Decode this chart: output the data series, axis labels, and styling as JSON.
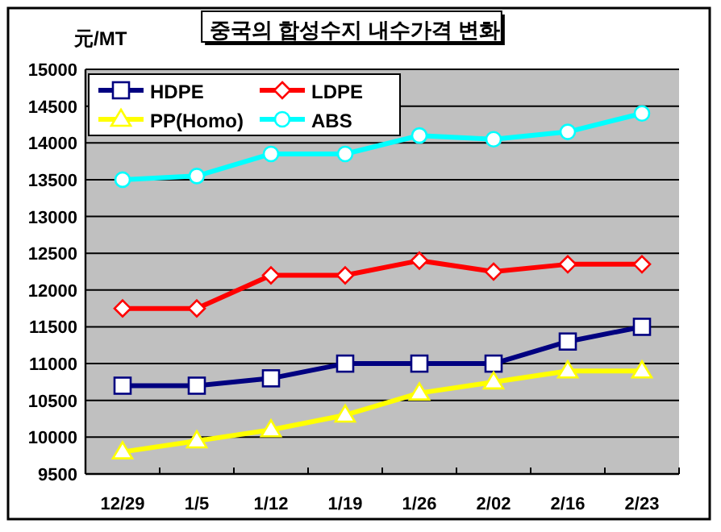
{
  "chart_data": {
    "type": "line",
    "title": "중국의 합성수지 내수가격 변화",
    "ylabel": "元/MT",
    "categories": [
      "12/29",
      "1/5",
      "1/12",
      "1/19",
      "1/26",
      "2/02",
      "2/16",
      "2/23"
    ],
    "series": [
      {
        "name": "HDPE",
        "color": "#000080",
        "marker": "square",
        "values": [
          10700,
          10700,
          10800,
          11000,
          11000,
          11000,
          11300,
          11500
        ]
      },
      {
        "name": "LDPE",
        "color": "#ff0000",
        "marker": "diamond",
        "values": [
          11750,
          11750,
          12200,
          12200,
          12400,
          12250,
          12350,
          12350
        ]
      },
      {
        "name": "PP(Homo)",
        "color": "#ffff00",
        "marker": "triangle",
        "values": [
          9800,
          9950,
          10100,
          10300,
          10600,
          10750,
          10900,
          10900
        ]
      },
      {
        "name": "ABS",
        "color": "#00ffff",
        "marker": "circle",
        "values": [
          13500,
          13550,
          13850,
          13850,
          14100,
          14050,
          14150,
          14400
        ]
      }
    ],
    "ylim": [
      9500,
      15000
    ],
    "yticks": [
      9500,
      10000,
      10500,
      11000,
      11500,
      12000,
      12500,
      13000,
      13500,
      14000,
      14500,
      15000
    ],
    "grid": "y",
    "legend": "top left",
    "line_style": "solid"
  }
}
